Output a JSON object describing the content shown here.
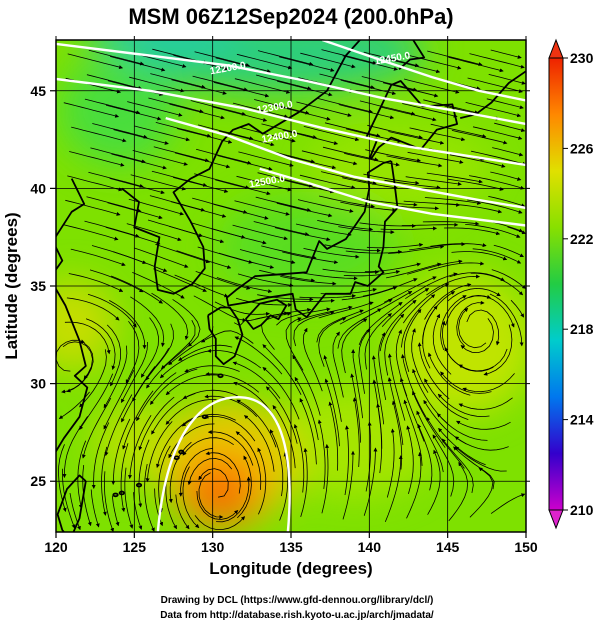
{
  "chart_data": {
    "type": "heatmap",
    "title": "MSM 06Z12Sep2024 (200.0hPa)",
    "xlabel": "Longitude (degrees)",
    "ylabel": "Latitude  (degrees)",
    "xlim": [
      120,
      150
    ],
    "ylim": [
      22.4,
      47.6
    ],
    "x_ticks": [
      {
        "value": 120,
        "label": "120"
      },
      {
        "value": 125,
        "label": "125"
      },
      {
        "value": 130,
        "label": "130"
      },
      {
        "value": 135,
        "label": "135"
      },
      {
        "value": 140,
        "label": "140"
      },
      {
        "value": 145,
        "label": "145"
      },
      {
        "value": 150,
        "label": "150"
      }
    ],
    "y_ticks": [
      {
        "value": 25,
        "label": "25"
      },
      {
        "value": 30,
        "label": "30"
      },
      {
        "value": 35,
        "label": "35"
      },
      {
        "value": 40,
        "label": "40"
      },
      {
        "value": 45,
        "label": "45"
      }
    ],
    "colorbar": {
      "min": 210,
      "max": 230,
      "tick_labels": [
        {
          "value": 230,
          "label": "230"
        },
        {
          "value": 226,
          "label": "226"
        },
        {
          "value": 222,
          "label": "222"
        },
        {
          "value": 218,
          "label": "218"
        },
        {
          "value": 214,
          "label": "214"
        },
        {
          "value": 210,
          "label": "210"
        }
      ],
      "colors": [
        "#cc00cc",
        "#3300cc",
        "#0077ee",
        "#00cccc",
        "#22cc44",
        "#88e000",
        "#e0e000",
        "#ff8800",
        "#ee2200"
      ]
    },
    "contour_labels": [
      {
        "text": "12200.0",
        "lon": 131.0,
        "lat": 46.0
      },
      {
        "text": "12300.0",
        "lon": 134.0,
        "lat": 44.0
      },
      {
        "text": "12400.0",
        "lon": 134.3,
        "lat": 42.5
      },
      {
        "text": "12450.0",
        "lon": 141.5,
        "lat": 46.5
      },
      {
        "text": "12500.0",
        "lon": 133.5,
        "lat": 40.2
      }
    ],
    "cyclone_center": {
      "lon": 130.3,
      "lat": 24.5
    },
    "anticyclone_center": {
      "lon": 147.0,
      "lat": 33.5
    }
  },
  "credits": {
    "line1": "Drawing by DCL (https://www.gfd-dennou.org/library/dcl/)",
    "line2": "Data from http://database.rish.kyoto-u.ac.jp/arch/jmadata/"
  }
}
